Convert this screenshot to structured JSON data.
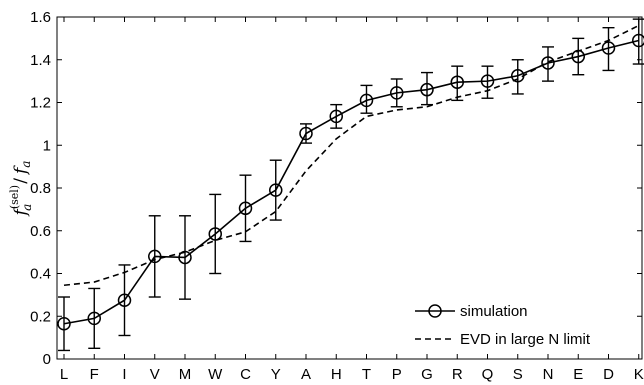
{
  "chart_data": {
    "type": "line",
    "ylabel_parts": {
      "f_main": "f",
      "sub_a": "a",
      "sup_sel": "(sel)",
      "slash": "/",
      "f2": "f",
      "sub2": "a"
    },
    "categories": [
      "L",
      "F",
      "I",
      "V",
      "M",
      "W",
      "C",
      "Y",
      "A",
      "H",
      "T",
      "P",
      "G",
      "R",
      "Q",
      "S",
      "N",
      "E",
      "D",
      "K"
    ],
    "ylim": [
      0,
      1.6
    ],
    "yticks": [
      0,
      0.2,
      0.4,
      0.6,
      0.8,
      1,
      1.2,
      1.4,
      1.6
    ],
    "ytick_labels": [
      "0",
      "0.2",
      "0.4",
      "0.6",
      "0.8",
      "1",
      "1.2",
      "1.4",
      "1.6"
    ],
    "grid": false,
    "legend_position": "bottom-right",
    "series": [
      {
        "name": "simulation",
        "style": "solid-circle-markers",
        "color": "#000000",
        "values": [
          0.165,
          0.19,
          0.275,
          0.48,
          0.475,
          0.585,
          0.705,
          0.79,
          1.055,
          1.135,
          1.21,
          1.245,
          1.26,
          1.295,
          1.3,
          1.325,
          1.385,
          1.415,
          1.455,
          1.49
        ],
        "err_low": [
          0.04,
          0.05,
          0.11,
          0.29,
          0.28,
          0.4,
          0.55,
          0.65,
          1.01,
          1.08,
          1.15,
          1.18,
          1.19,
          1.21,
          1.22,
          1.24,
          1.3,
          1.33,
          1.35,
          1.38
        ],
        "err_high": [
          0.29,
          0.33,
          0.44,
          0.67,
          0.67,
          0.77,
          0.86,
          0.93,
          1.1,
          1.19,
          1.28,
          1.31,
          1.34,
          1.37,
          1.37,
          1.4,
          1.46,
          1.5,
          1.55,
          1.59
        ]
      },
      {
        "name": "EVD in large N limit",
        "style": "dashed",
        "color": "#000000",
        "values": [
          0.345,
          0.36,
          0.405,
          0.465,
          0.5,
          0.555,
          0.595,
          0.69,
          0.88,
          1.03,
          1.135,
          1.165,
          1.18,
          1.225,
          1.255,
          1.31,
          1.39,
          1.44,
          1.49,
          1.56
        ]
      }
    ]
  }
}
